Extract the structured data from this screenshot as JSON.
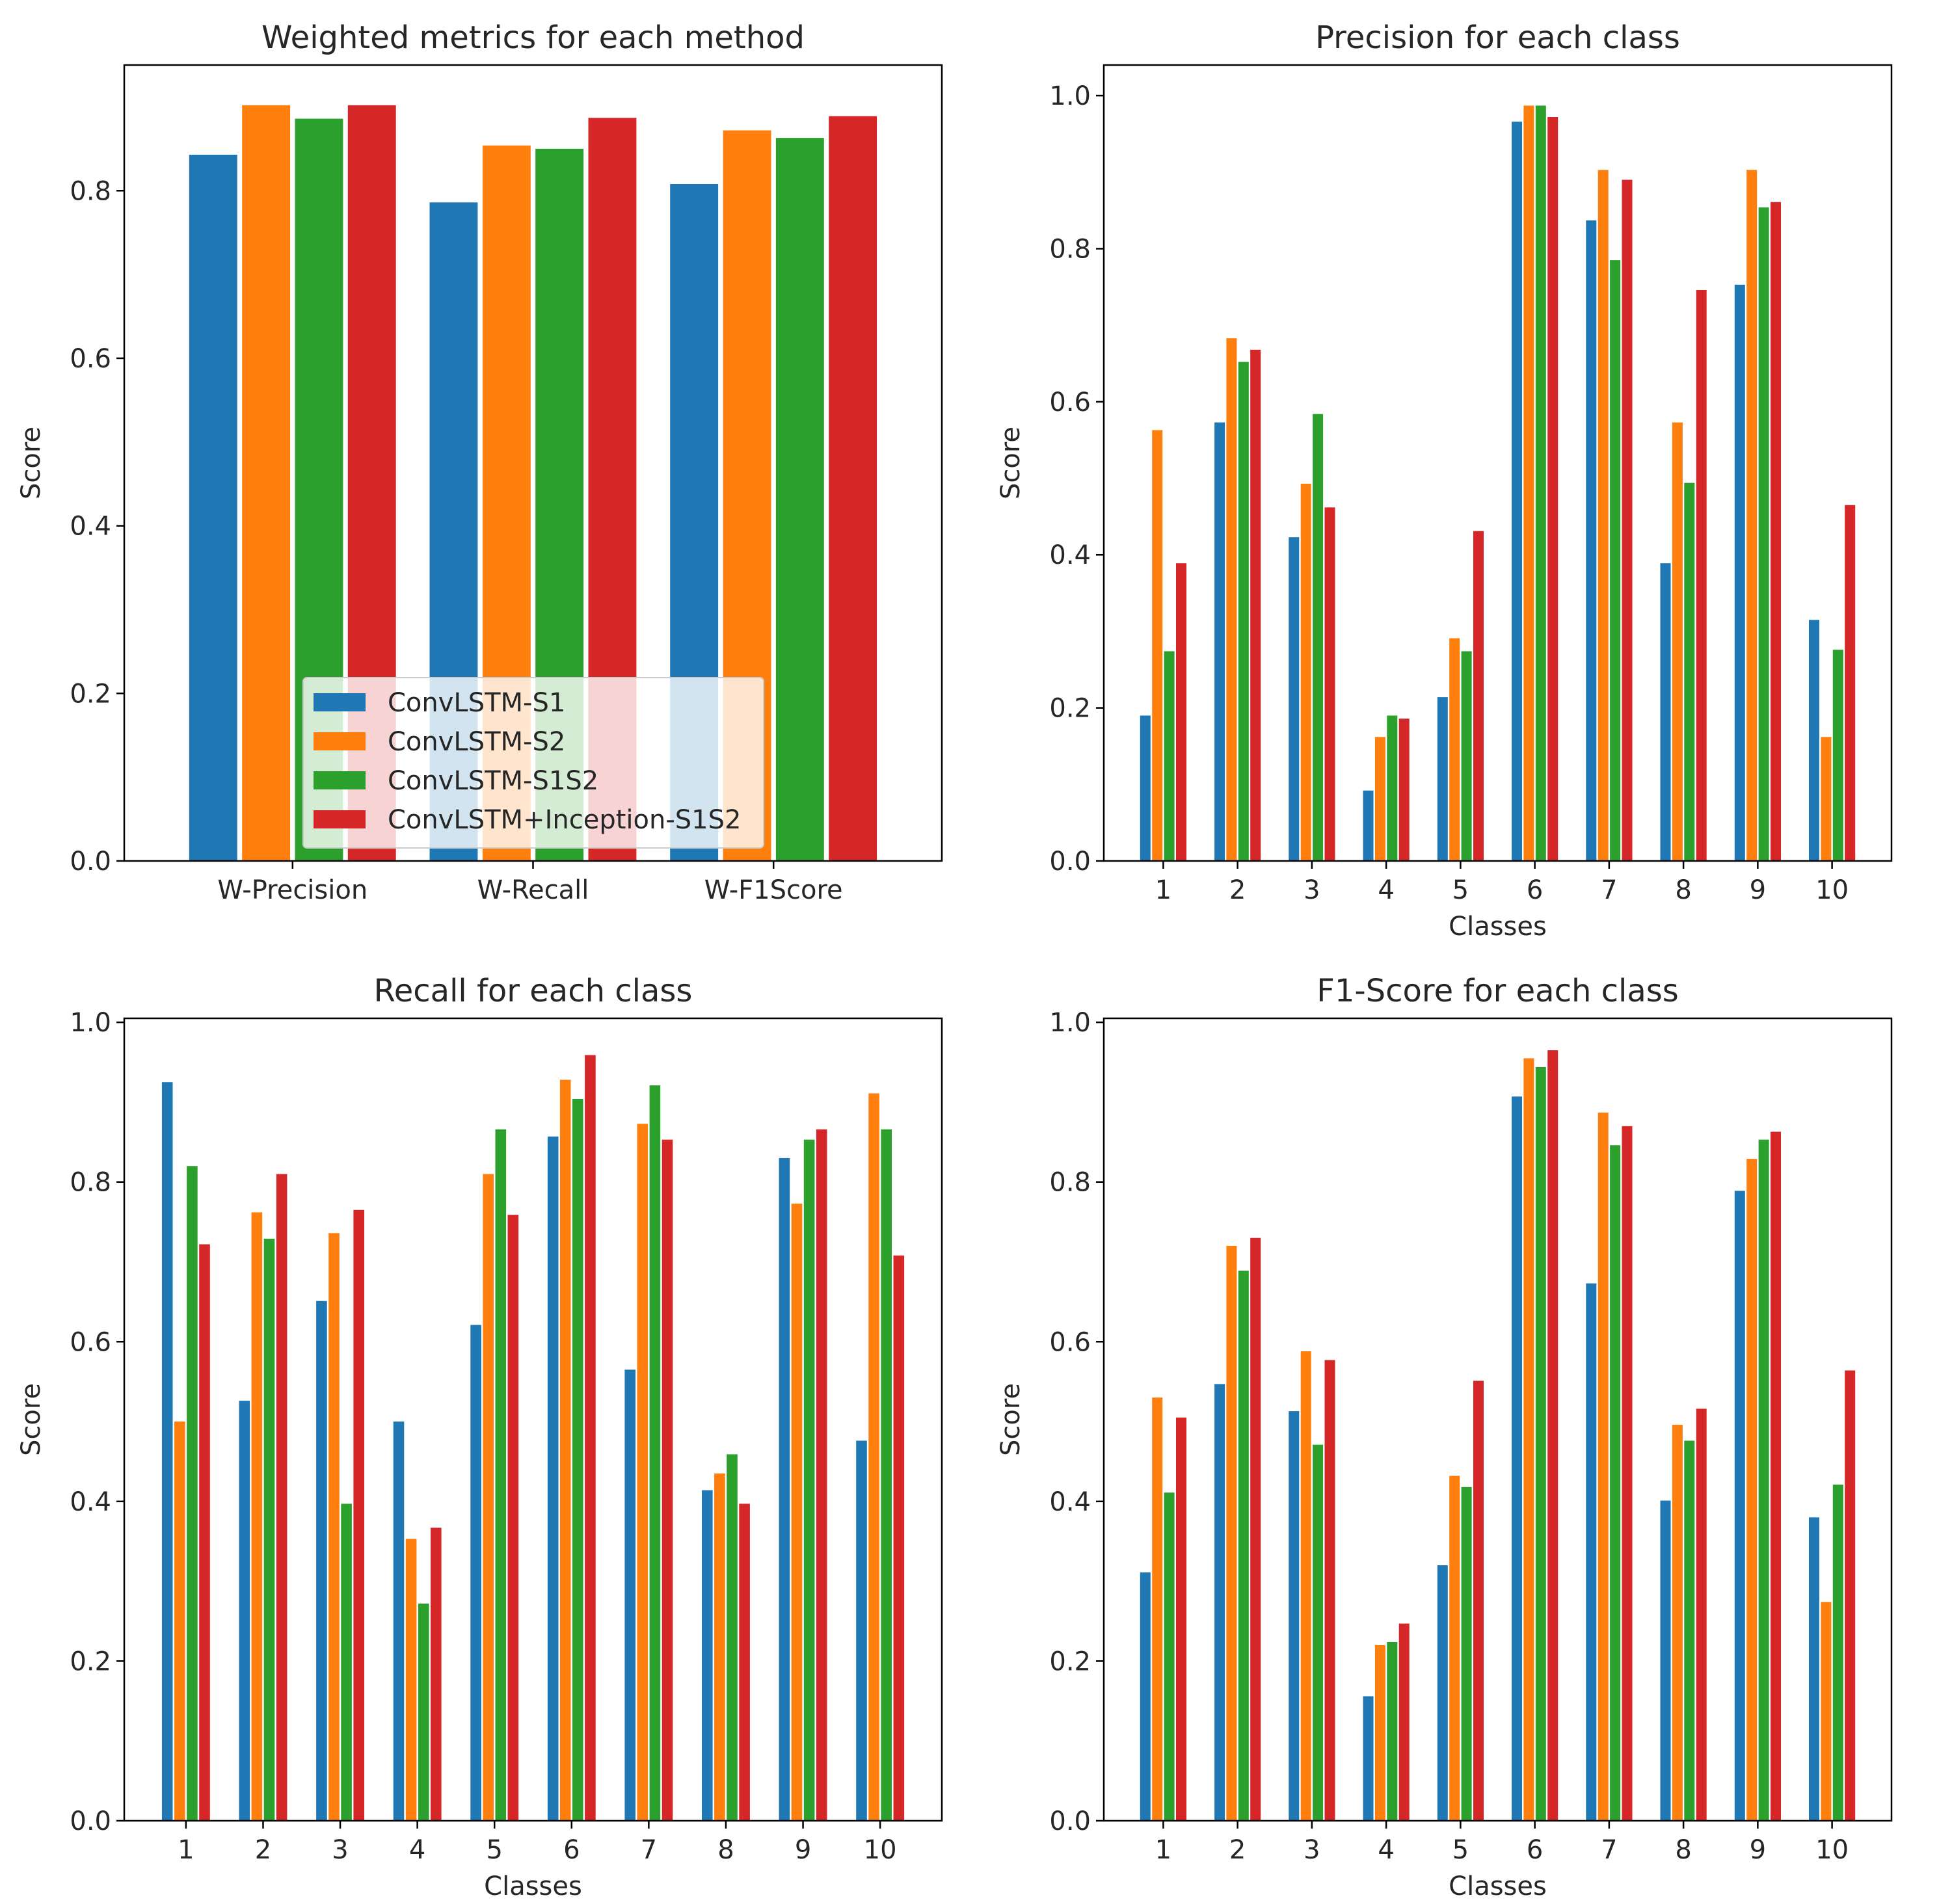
{
  "colors": [
    "#1f77b4",
    "#ff7f0e",
    "#2ca02c",
    "#d62728"
  ],
  "legend": [
    "ConvLSTM-S1",
    "ConvLSTM-S2",
    "ConvLSTM-S1S2",
    "ConvLSTM+Inception-S1S2"
  ],
  "chart_data": [
    {
      "type": "bar",
      "title": "Weighted metrics for each method",
      "xlabel": "",
      "ylabel": "Score",
      "ylim": [
        0,
        0.95
      ],
      "yticks": [
        "0.0",
        "0.2",
        "0.4",
        "0.6",
        "0.8"
      ],
      "yticks_values": [
        0,
        0.2,
        0.4,
        0.6,
        0.8
      ],
      "categories": [
        "W-Precision",
        "W-Recall",
        "W-F1Score"
      ],
      "legend_position": "lower center",
      "series": [
        {
          "name": "ConvLSTM-S1",
          "values": [
            0.843,
            0.786,
            0.808
          ]
        },
        {
          "name": "ConvLSTM-S2",
          "values": [
            0.902,
            0.854,
            0.872
          ]
        },
        {
          "name": "ConvLSTM-S1S2",
          "values": [
            0.886,
            0.85,
            0.863
          ]
        },
        {
          "name": "ConvLSTM+Inception-S1S2",
          "values": [
            0.902,
            0.887,
            0.889
          ]
        }
      ]
    },
    {
      "type": "bar",
      "title": "Precision for each class",
      "xlabel": "Classes",
      "ylabel": "Score",
      "ylim": [
        0,
        1.04
      ],
      "yticks": [
        "0.0",
        "0.2",
        "0.4",
        "0.6",
        "0.8",
        "1.0"
      ],
      "yticks_values": [
        0,
        0.2,
        0.4,
        0.6,
        0.8,
        1.0
      ],
      "categories": [
        "1",
        "2",
        "3",
        "4",
        "5",
        "6",
        "7",
        "8",
        "9",
        "10"
      ],
      "series": [
        {
          "name": "ConvLSTM-S1",
          "values": [
            0.19,
            0.573,
            0.423,
            0.092,
            0.214,
            0.966,
            0.837,
            0.389,
            0.753,
            0.315
          ]
        },
        {
          "name": "ConvLSTM-S2",
          "values": [
            0.563,
            0.683,
            0.493,
            0.162,
            0.291,
            0.987,
            0.903,
            0.573,
            0.903,
            0.162
          ]
        },
        {
          "name": "ConvLSTM-S1S2",
          "values": [
            0.274,
            0.652,
            0.584,
            0.19,
            0.274,
            0.987,
            0.785,
            0.494,
            0.854,
            0.276
          ]
        },
        {
          "name": "ConvLSTM+Inception-S1S2",
          "values": [
            0.389,
            0.668,
            0.462,
            0.186,
            0.431,
            0.972,
            0.89,
            0.746,
            0.861,
            0.465
          ]
        }
      ]
    },
    {
      "type": "bar",
      "title": "Recall for each class",
      "xlabel": "Classes",
      "ylabel": "Score",
      "ylim": [
        0,
        1.005
      ],
      "yticks": [
        "0.0",
        "0.2",
        "0.4",
        "0.6",
        "0.8",
        "1.0"
      ],
      "yticks_values": [
        0,
        0.2,
        0.4,
        0.6,
        0.8,
        1.0
      ],
      "categories": [
        "1",
        "2",
        "3",
        "4",
        "5",
        "6",
        "7",
        "8",
        "9",
        "10"
      ],
      "series": [
        {
          "name": "ConvLSTM-S1",
          "values": [
            0.925,
            0.526,
            0.651,
            0.5,
            0.621,
            0.857,
            0.565,
            0.414,
            0.83,
            0.476
          ]
        },
        {
          "name": "ConvLSTM-S2",
          "values": [
            0.5,
            0.762,
            0.736,
            0.353,
            0.81,
            0.928,
            0.873,
            0.435,
            0.773,
            0.911
          ]
        },
        {
          "name": "ConvLSTM-S1S2",
          "values": [
            0.82,
            0.729,
            0.397,
            0.272,
            0.866,
            0.904,
            0.921,
            0.459,
            0.853,
            0.866
          ]
        },
        {
          "name": "ConvLSTM+Inception-S1S2",
          "values": [
            0.722,
            0.81,
            0.765,
            0.367,
            0.759,
            0.959,
            0.853,
            0.397,
            0.866,
            0.708
          ]
        }
      ]
    },
    {
      "type": "bar",
      "title": "F1-Score for each class",
      "xlabel": "Classes",
      "ylabel": "Score",
      "ylim": [
        0,
        1.005
      ],
      "yticks": [
        "0.0",
        "0.2",
        "0.4",
        "0.6",
        "0.8",
        "1.0"
      ],
      "yticks_values": [
        0,
        0.2,
        0.4,
        0.6,
        0.8,
        1.0
      ],
      "categories": [
        "1",
        "2",
        "3",
        "4",
        "5",
        "6",
        "7",
        "8",
        "9",
        "10"
      ],
      "series": [
        {
          "name": "ConvLSTM-S1",
          "values": [
            0.311,
            0.547,
            0.513,
            0.156,
            0.32,
            0.907,
            0.673,
            0.401,
            0.789,
            0.38
          ]
        },
        {
          "name": "ConvLSTM-S2",
          "values": [
            0.53,
            0.72,
            0.588,
            0.22,
            0.432,
            0.955,
            0.887,
            0.496,
            0.829,
            0.274
          ]
        },
        {
          "name": "ConvLSTM-S1S2",
          "values": [
            0.411,
            0.689,
            0.471,
            0.224,
            0.418,
            0.944,
            0.846,
            0.476,
            0.853,
            0.421
          ]
        },
        {
          "name": "ConvLSTM+Inception-S1S2",
          "values": [
            0.505,
            0.73,
            0.577,
            0.247,
            0.551,
            0.965,
            0.87,
            0.516,
            0.863,
            0.564
          ]
        }
      ]
    }
  ]
}
